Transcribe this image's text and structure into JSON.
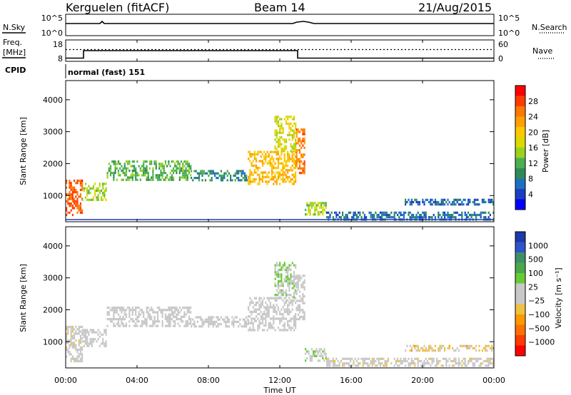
{
  "header": {
    "station": "Kerguelen (fitACF)",
    "beam": "Beam 14",
    "date": "21/Aug/2015"
  },
  "noise_panel": {
    "left_label": "N.Sky",
    "right_label": "N.Search",
    "y_ticks_left": [
      "10^5",
      "10^0"
    ],
    "y_ticks_right": [
      "10^5",
      "10^0"
    ]
  },
  "freq_panel": {
    "left_label_1": "Freq.",
    "left_label_2": "[MHz]",
    "right_label": "Nave",
    "y_ticks_left": [
      "18",
      "8"
    ],
    "y_ticks_right": [
      "60",
      "0"
    ]
  },
  "cpid_panel": {
    "label": "CPID",
    "mode": "normal (fast) 151"
  },
  "power_panel": {
    "ylabel": "Slant Range [km]",
    "y_ticks": [
      "4000",
      "3000",
      "2000",
      "1000"
    ],
    "colorbar_label": "Power [dB]",
    "colorbar_ticks": [
      "28",
      "24",
      "20",
      "16",
      "12",
      "8",
      "4"
    ],
    "colorbar_colors": [
      "#ff0000",
      "#ff3c00",
      "#ff7800",
      "#ffa000",
      "#ffc800",
      "#dcd900",
      "#9ad21e",
      "#4caf50",
      "#2e8b57",
      "#1f6fbf",
      "#1d3fbf",
      "#0000ff"
    ]
  },
  "velocity_panel": {
    "ylabel": "Slant Range [km]",
    "y_ticks": [
      "4000",
      "3000",
      "2000",
      "1000"
    ],
    "colorbar_label": "Velocity [m s⁻¹]",
    "colorbar_ticks": [
      "1000",
      "500",
      "100",
      "25",
      "−25",
      "−100",
      "−500",
      "−1000"
    ],
    "colorbar_colors": [
      "#1c3aa8",
      "#2e55c9",
      "#3f8f6a",
      "#4aa84a",
      "#66cc33",
      "#c8c8c8",
      "#c8c8c8",
      "#f0c040",
      "#ff9900",
      "#ff7000",
      "#ff3c00",
      "#ff0000"
    ]
  },
  "xaxis": {
    "xlabel": "Time UT",
    "ticks": [
      "00:00",
      "04:00",
      "08:00",
      "12:00",
      "16:00",
      "20:00",
      "00:00"
    ]
  },
  "chart_data": {
    "type": "heatmap",
    "title": "Kerguelen (fitACF) Beam 14 21/Aug/2015",
    "xlabel": "Time UT",
    "ylabel": "Slant Range [km]",
    "xlim": [
      0,
      24
    ],
    "ylim": [
      180,
      4600
    ],
    "panels": [
      {
        "name": "Power",
        "units": "dB",
        "colorbar_range": [
          0,
          30
        ],
        "blobs": [
          {
            "t0": 0.0,
            "t1": 0.9,
            "r0": 400,
            "r1": 1500,
            "v": 26
          },
          {
            "t0": 0.9,
            "t1": 2.3,
            "r0": 850,
            "r1": 1400,
            "v": 14
          },
          {
            "t0": 2.3,
            "t1": 7.0,
            "r0": 1500,
            "r1": 2100,
            "v": 11
          },
          {
            "t0": 7.0,
            "t1": 10.2,
            "r0": 1450,
            "r1": 1800,
            "v": 8
          },
          {
            "t0": 10.2,
            "t1": 12.9,
            "r0": 1350,
            "r1": 2400,
            "v": 20
          },
          {
            "t0": 11.7,
            "t1": 12.9,
            "r0": 2400,
            "r1": 3500,
            "v": 16
          },
          {
            "t0": 12.9,
            "t1": 13.4,
            "r0": 1700,
            "r1": 3100,
            "v": 24
          },
          {
            "t0": 13.4,
            "t1": 14.6,
            "r0": 400,
            "r1": 800,
            "v": 14
          },
          {
            "t0": 14.6,
            "t1": 24.0,
            "r0": 250,
            "r1": 500,
            "v": 6
          },
          {
            "t0": 19.0,
            "t1": 24.0,
            "r0": 700,
            "r1": 900,
            "v": 5
          }
        ]
      },
      {
        "name": "Velocity",
        "units": "m s-1",
        "colorbar_range": [
          -1000,
          1000
        ],
        "blobs": [
          {
            "t0": 0.0,
            "t1": 0.9,
            "r0": 400,
            "r1": 1500,
            "v": -50
          },
          {
            "t0": 0.9,
            "t1": 2.3,
            "r0": 850,
            "r1": 1400,
            "v": 0
          },
          {
            "t0": 2.3,
            "t1": 7.0,
            "r0": 1500,
            "r1": 2100,
            "v": 0
          },
          {
            "t0": 7.0,
            "t1": 10.2,
            "r0": 1450,
            "r1": 1800,
            "v": 0
          },
          {
            "t0": 10.2,
            "t1": 12.9,
            "r0": 1350,
            "r1": 2400,
            "v": 0
          },
          {
            "t0": 11.7,
            "t1": 12.9,
            "r0": 2400,
            "r1": 3500,
            "v": 150
          },
          {
            "t0": 12.9,
            "t1": 13.4,
            "r0": 1700,
            "r1": 3100,
            "v": 0
          },
          {
            "t0": 13.4,
            "t1": 14.6,
            "r0": 400,
            "r1": 800,
            "v": 100
          },
          {
            "t0": 14.6,
            "t1": 24.0,
            "r0": 250,
            "r1": 500,
            "v": -60
          },
          {
            "t0": 19.0,
            "t1": 24.0,
            "r0": 700,
            "r1": 900,
            "v": -200
          }
        ]
      }
    ],
    "frequency_MHz": {
      "t": [
        0,
        1.0,
        1.0,
        13.0,
        13.0,
        24
      ],
      "v": [
        9.5,
        9.5,
        13,
        13,
        9.5,
        9.5
      ]
    },
    "nave": {
      "t": [
        0,
        24
      ],
      "v": [
        33,
        33
      ]
    }
  }
}
